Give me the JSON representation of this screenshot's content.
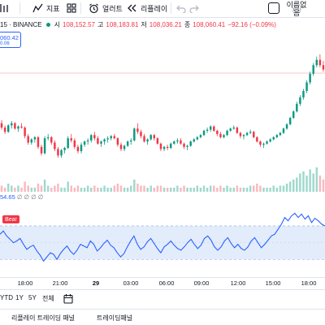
{
  "toolbar": {
    "indicators_label": "지표",
    "alerts_label": "얼러트",
    "replay_label": "리플레이",
    "user_name": "이름없음",
    "user_sub": "저장"
  },
  "legend": {
    "symbol_suffix": "15 · BINANCE",
    "open_label": "시",
    "open_value": "108,152.57",
    "high_label": "고",
    "high_value": "108,183.81",
    "low_label": "저",
    "low_value": "108,036.21",
    "close_label": "종",
    "close_value": "108,060.41",
    "change_value": "−92.16 (−0.09%)"
  },
  "price_box": {
    "value": "060.42",
    "sub": "0.06"
  },
  "indicator": {
    "value": "54.65",
    "na_values": "∅ ∅ ∅ ∅",
    "bear_label": "Bear"
  },
  "time_axis": {
    "ticks": [
      "18:00",
      "21:00",
      "29",
      "03:00",
      "06:00",
      "09:00",
      "12:00",
      "15:00",
      "18:00"
    ]
  },
  "range_bar": {
    "items": [
      "YTD",
      "1Y",
      "5Y",
      "전체"
    ]
  },
  "bottom_tabs": {
    "tab1": "리플레이 트레이딩 패널",
    "tab2": "트레이딩패널"
  },
  "colors": {
    "up": "#089981",
    "down": "#f23645",
    "rsi_line": "#2962ff",
    "rsi_band": "#e3ecfb",
    "accent": "#2962ff"
  },
  "chart_data": {
    "type": "candlestick",
    "candles": [
      [
        100,
        101.5,
        97,
        98
      ],
      [
        98,
        99,
        95,
        96
      ],
      [
        96,
        99.5,
        95.5,
        99
      ],
      [
        99,
        101,
        97.5,
        100
      ],
      [
        100,
        100.5,
        97,
        97.5
      ],
      [
        97.5,
        99,
        96,
        98.5
      ],
      [
        98.5,
        100,
        97.5,
        98
      ],
      [
        98,
        98.5,
        93,
        94
      ],
      [
        94,
        95,
        90,
        91
      ],
      [
        91,
        93,
        90,
        92.5
      ],
      [
        92.5,
        94,
        91,
        93.5
      ],
      [
        93.5,
        94,
        88,
        89
      ],
      [
        89,
        90,
        85,
        86
      ],
      [
        86,
        94,
        85.5,
        93
      ],
      [
        93,
        95,
        92,
        93.5
      ],
      [
        93.5,
        94,
        90,
        91
      ],
      [
        91,
        92,
        87,
        88
      ],
      [
        88,
        89,
        84,
        85
      ],
      [
        85,
        88,
        84,
        87.5
      ],
      [
        87.5,
        89,
        86,
        88.5
      ],
      [
        88.5,
        94,
        88,
        93
      ],
      [
        93,
        95,
        91,
        92
      ],
      [
        92,
        93,
        88,
        89
      ],
      [
        89,
        90,
        86,
        87
      ],
      [
        87,
        91,
        86,
        90
      ],
      [
        90,
        92,
        89,
        91.5
      ],
      [
        91.5,
        93,
        90,
        92
      ],
      [
        92,
        95,
        91,
        94.5
      ],
      [
        94.5,
        96,
        92,
        93
      ],
      [
        93,
        94,
        90,
        90.5
      ],
      [
        90.5,
        92,
        89,
        91.5
      ],
      [
        91.5,
        93,
        90,
        92.5
      ],
      [
        92.5,
        94,
        91,
        93
      ],
      [
        93,
        94.5,
        92,
        94
      ],
      [
        94,
        95,
        92.5,
        93
      ],
      [
        93,
        93.5,
        89,
        90
      ],
      [
        90,
        91,
        87,
        88
      ],
      [
        88,
        90,
        87,
        89.5
      ],
      [
        89.5,
        92,
        89,
        91.5
      ],
      [
        91.5,
        93,
        90,
        92
      ],
      [
        92,
        98,
        91.5,
        97.5
      ],
      [
        97.5,
        100,
        95,
        96
      ],
      [
        96,
        97,
        93,
        94
      ],
      [
        94,
        95,
        91,
        91.5
      ],
      [
        91.5,
        93,
        90,
        92.5
      ],
      [
        92.5,
        95,
        92,
        94.5
      ],
      [
        94.5,
        95,
        92,
        93
      ],
      [
        93,
        93.5,
        90,
        90.5
      ],
      [
        90.5,
        91,
        87,
        88
      ],
      [
        88,
        89.5,
        87,
        89
      ],
      [
        89,
        90,
        87.5,
        88.5
      ],
      [
        88.5,
        91,
        88,
        90.5
      ],
      [
        90.5,
        92,
        90,
        91.5
      ],
      [
        91.5,
        93,
        90.5,
        92
      ],
      [
        92,
        93,
        90,
        90.5
      ],
      [
        90.5,
        91,
        88,
        89
      ],
      [
        89,
        90,
        87.5,
        89.5
      ],
      [
        89.5,
        92,
        89,
        91.5
      ],
      [
        91.5,
        93,
        91,
        92.5
      ],
      [
        92.5,
        94,
        92,
        93.5
      ],
      [
        93.5,
        95,
        93,
        94.5
      ],
      [
        94.5,
        97,
        94,
        96.5
      ],
      [
        96.5,
        98,
        95.5,
        97
      ],
      [
        97,
        99,
        96,
        98.5
      ],
      [
        98.5,
        99,
        96,
        96.5
      ],
      [
        96.5,
        97,
        94,
        95
      ],
      [
        95,
        96,
        93,
        93.5
      ],
      [
        93.5,
        95,
        93,
        94.5
      ],
      [
        94.5,
        97,
        94,
        96.5
      ],
      [
        96.5,
        98,
        96,
        97.5
      ],
      [
        97.5,
        99,
        97,
        98
      ],
      [
        98,
        98.5,
        95,
        95.5
      ],
      [
        95.5,
        96,
        93,
        94
      ],
      [
        94,
        95,
        92.5,
        94.5
      ],
      [
        94.5,
        96,
        94,
        95.5
      ],
      [
        95.5,
        97,
        95,
        96
      ],
      [
        96,
        96.5,
        93,
        93.5
      ],
      [
        93.5,
        94,
        91,
        91.5
      ],
      [
        91.5,
        92,
        89,
        90
      ],
      [
        90,
        91,
        88.5,
        90.5
      ],
      [
        90.5,
        92,
        90,
        91.5
      ],
      [
        91.5,
        93,
        91,
        92.5
      ],
      [
        92.5,
        94,
        92,
        93.5
      ],
      [
        93.5,
        95,
        93,
        94.5
      ],
      [
        94.5,
        96,
        94,
        95.5
      ],
      [
        95.5,
        98,
        95,
        97.5
      ],
      [
        97.5,
        100,
        97,
        99.5
      ],
      [
        99.5,
        103,
        99,
        102.5
      ],
      [
        102.5,
        106,
        102,
        105.5
      ],
      [
        105.5,
        110,
        105,
        109
      ],
      [
        109,
        113,
        108,
        112
      ],
      [
        112,
        116,
        111,
        115
      ],
      [
        115,
        120,
        114,
        119
      ],
      [
        119,
        124,
        118,
        123
      ],
      [
        123,
        128,
        122,
        127
      ],
      [
        127,
        131,
        126,
        129.5
      ],
      [
        129.5,
        132,
        126,
        127
      ],
      [
        127,
        129,
        124,
        125
      ]
    ],
    "volume": [
      3,
      2,
      4,
      3,
      2,
      3,
      2,
      5,
      3,
      2,
      2,
      4,
      3,
      6,
      3,
      2,
      3,
      4,
      2,
      2,
      5,
      3,
      2,
      3,
      2,
      2,
      3,
      2,
      3,
      2,
      2,
      3,
      2,
      2,
      3,
      4,
      3,
      2,
      2,
      3,
      6,
      4,
      3,
      3,
      2,
      3,
      2,
      3,
      3,
      2,
      2,
      2,
      2,
      3,
      2,
      3,
      2,
      2,
      2,
      3,
      2,
      3,
      2,
      3,
      3,
      2,
      3,
      2,
      3,
      2,
      2,
      3,
      2,
      2,
      2,
      3,
      3,
      4,
      3,
      2,
      2,
      2,
      3,
      2,
      3,
      3,
      4,
      5,
      6,
      7,
      9,
      10,
      8,
      11,
      9,
      12,
      8,
      6
    ],
    "rsi": [
      60,
      64,
      58,
      54,
      50,
      52,
      55,
      48,
      42,
      45,
      47,
      40,
      35,
      28,
      33,
      38,
      36,
      30,
      37,
      42,
      46,
      40,
      36,
      41,
      48,
      46,
      44,
      52,
      48,
      40,
      44,
      49,
      53,
      47,
      44,
      38,
      33,
      37,
      45,
      52,
      58,
      48,
      42,
      45,
      51,
      55,
      49,
      43,
      38,
      45,
      48,
      52,
      47,
      43,
      41,
      45,
      50,
      54,
      48,
      43,
      47,
      55,
      58,
      53,
      45,
      41,
      45,
      52,
      56,
      49,
      44,
      48,
      43,
      41,
      45,
      52,
      56,
      50,
      44,
      48,
      53,
      58,
      60,
      66,
      72,
      80,
      76,
      82,
      85,
      80,
      84,
      78,
      82,
      74,
      79,
      76,
      72,
      70
    ],
    "rsi_band": [
      30,
      70
    ],
    "rsi_mid": 50
  }
}
